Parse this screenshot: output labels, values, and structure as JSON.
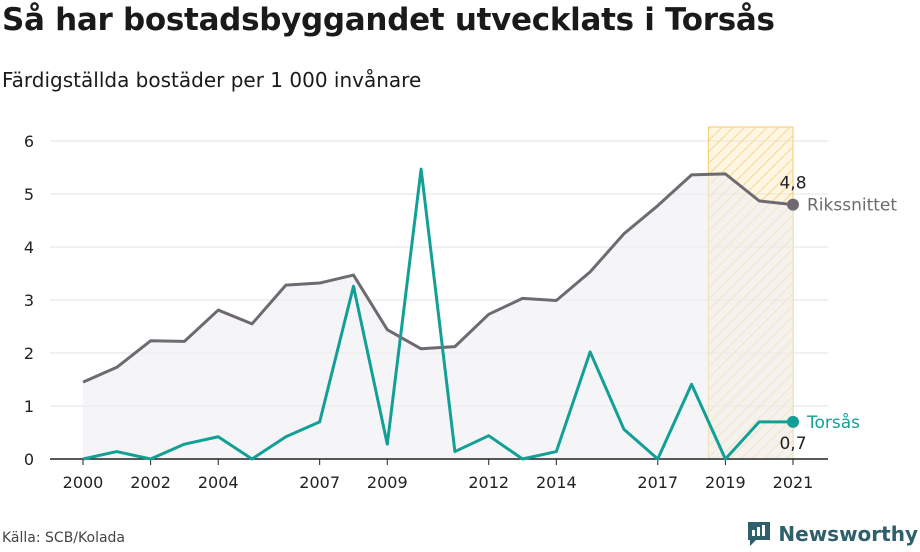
{
  "title": "Så har bostadsbyggandet utvecklats i Torsås",
  "subtitle": "Färdigställda bostäder per 1 000 invånare",
  "source": "Källa: SCB/Kolada",
  "brand": "Newsworthy",
  "colors": {
    "riks": "#6e6a70",
    "torsas": "#12a096",
    "highlight_fill": "#fbe5b0",
    "highlight_stroke": "#f3cc6a",
    "grid": "#e3e3e3",
    "brand": "#2e5f6b"
  },
  "chart_data": {
    "type": "line",
    "x": [
      2000,
      2001,
      2002,
      2003,
      2004,
      2005,
      2006,
      2007,
      2008,
      2009,
      2010,
      2011,
      2012,
      2013,
      2014,
      2015,
      2016,
      2017,
      2018,
      2019,
      2020,
      2021
    ],
    "x_tick_labels": [
      "2000",
      "2002",
      "2004",
      "2007",
      "2009",
      "2012",
      "2014",
      "2017",
      "2019",
      "2021"
    ],
    "y_ticks": [
      0,
      1,
      2,
      3,
      4,
      5,
      6
    ],
    "ylim": [
      0,
      6
    ],
    "xlim": [
      2000,
      2021
    ],
    "grid": true,
    "highlight_range": [
      2019,
      2021
    ],
    "series": [
      {
        "name": "Rikssnittet",
        "values": [
          1.45,
          1.73,
          2.23,
          2.22,
          2.81,
          2.55,
          3.28,
          3.32,
          3.47,
          2.44,
          2.08,
          2.12,
          2.73,
          3.03,
          2.99,
          3.53,
          4.25,
          4.78,
          5.36,
          5.38,
          4.87,
          4.8
        ],
        "end_label": "4,8"
      },
      {
        "name": "Torsås",
        "values": [
          0,
          0.14,
          0,
          0.28,
          0.42,
          0,
          0.42,
          0.7,
          3.26,
          0.28,
          5.47,
          0.14,
          0.44,
          0,
          0.14,
          2.02,
          0.56,
          0,
          1.41,
          0,
          0.7,
          0.7
        ],
        "end_label": "0,7"
      }
    ]
  }
}
